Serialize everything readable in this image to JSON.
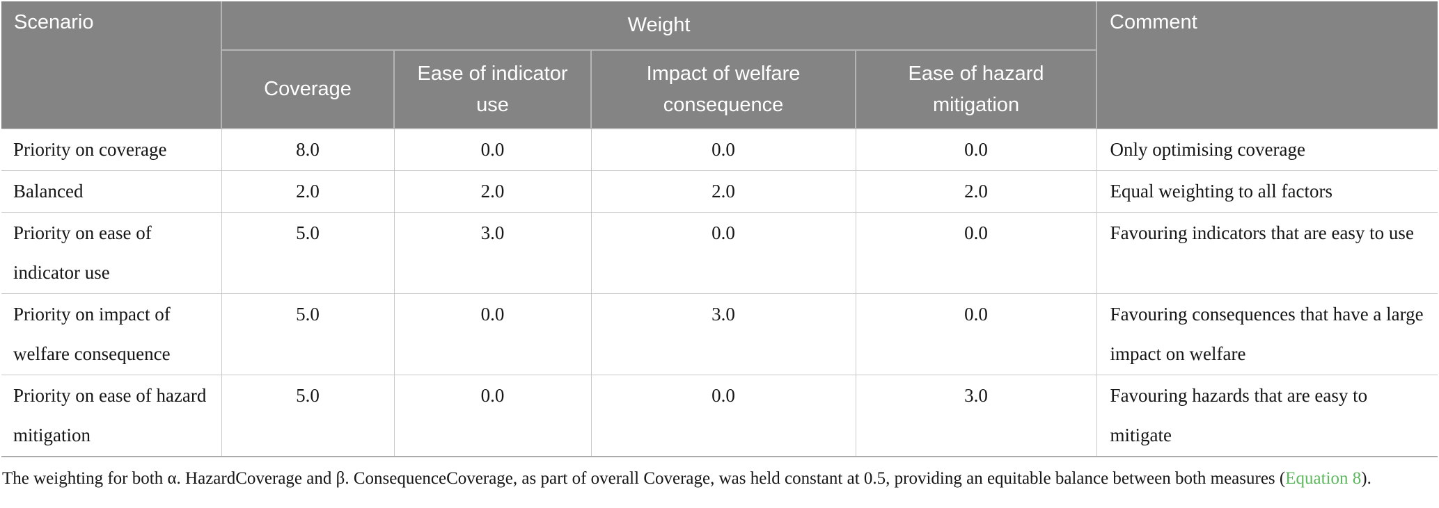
{
  "table": {
    "header": {
      "scenario": "Scenario",
      "weight_group": "Weight",
      "comment": "Comment",
      "weight_columns": [
        "Coverage",
        "Ease of indicator use",
        "Impact of welfare consequence",
        "Ease of hazard mitigation"
      ]
    },
    "rows": [
      {
        "scenario": "Priority on coverage",
        "coverage": "8.0",
        "ease_indicator": "0.0",
        "impact_welfare": "0.0",
        "ease_hazard": "0.0",
        "comment": "Only optimising coverage"
      },
      {
        "scenario": "Balanced",
        "coverage": "2.0",
        "ease_indicator": "2.0",
        "impact_welfare": "2.0",
        "ease_hazard": "2.0",
        "comment": "Equal weighting to all factors"
      },
      {
        "scenario": "Priority on ease of indicator use",
        "coverage": "5.0",
        "ease_indicator": "3.0",
        "impact_welfare": "0.0",
        "ease_hazard": "0.0",
        "comment": "Favouring indicators that are easy to use"
      },
      {
        "scenario": "Priority on impact of welfare consequence",
        "coverage": "5.0",
        "ease_indicator": "0.0",
        "impact_welfare": "3.0",
        "ease_hazard": "0.0",
        "comment": "Favouring consequences that have a large impact on welfare"
      },
      {
        "scenario": "Priority on ease of hazard mitigation",
        "coverage": "5.0",
        "ease_indicator": "0.0",
        "impact_welfare": "0.0",
        "ease_hazard": "3.0",
        "comment": "Favouring hazards that are easy to mitigate"
      }
    ],
    "footnote": {
      "text_before_link": "The weighting for both α. HazardCoverage and β. ConsequenceCoverage, as part of overall Coverage, was held constant at 0.5, providing an equitable balance between both measures (",
      "link_text": "Equation 8",
      "text_after_link": ")."
    }
  },
  "colors": {
    "header_bg": "#848484",
    "header_text": "#ffffff",
    "header_divider": "#b5b5b5",
    "grid_line": "#c9c9c9",
    "table_bottom_border": "#ababab",
    "body_text": "#161616",
    "link_green": "#5cb85c"
  }
}
